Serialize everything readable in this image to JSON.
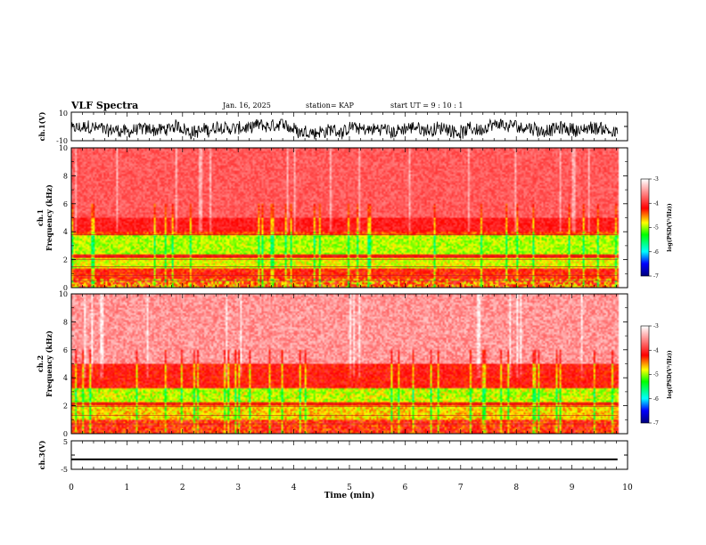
{
  "header": {
    "title": "VLF Spectra",
    "date": "Jan. 16, 2025",
    "station": "station= KAP",
    "start": "start UT =  9 : 10 : 1"
  },
  "colorbar": {
    "ticks": [
      "-3",
      "-4",
      "-5",
      "-6",
      "-7"
    ],
    "label": "log(PSD(V²/Hz))"
  },
  "chart_data": [
    {
      "id": "ch1-waveform",
      "type": "line",
      "ylabel": "ch.1(V)",
      "ylim": [
        -10,
        10
      ],
      "tick_labels": [
        "10",
        "-10"
      ],
      "xlim": [
        0,
        10
      ],
      "x_end_min": 9.82,
      "amplitude_range": [
        -9,
        5
      ]
    },
    {
      "id": "ch1-spectrogram",
      "type": "heatmap",
      "ylabel": "ch.1\nFrequency (kHz)",
      "ylim": [
        0,
        10
      ],
      "yticks": [
        "0",
        "2",
        "4",
        "6",
        "8",
        "10"
      ],
      "xlim": [
        0,
        10
      ],
      "value_range": [
        -7,
        -3
      ],
      "colors": [
        "#000080",
        "#0000ff",
        "#00ffff",
        "#00ff00",
        "#ffff00",
        "#ff0000",
        "#ffffff"
      ]
    },
    {
      "id": "ch2-spectrogram",
      "type": "heatmap",
      "ylabel": "ch.2\nFrequency (kHz)",
      "ylim": [
        0,
        10
      ],
      "yticks": [
        "0",
        "2",
        "4",
        "6",
        "8",
        "10"
      ],
      "xlim": [
        0,
        10
      ],
      "value_range": [
        -7,
        -3
      ],
      "colors": [
        "#000080",
        "#0000ff",
        "#00ffff",
        "#00ff00",
        "#ffff00",
        "#ff0000",
        "#ffffff"
      ]
    },
    {
      "id": "ch3-waveform",
      "type": "line",
      "ylabel": "ch.3(V)",
      "ylim": [
        -5,
        5
      ],
      "tick_labels": [
        "5",
        "-5"
      ],
      "xlim": [
        0,
        10
      ],
      "xticks": [
        "0",
        "1",
        "2",
        "3",
        "4",
        "5",
        "6",
        "7",
        "8",
        "9",
        "10"
      ],
      "xlabel": "Time (min)",
      "level": -1.5,
      "amplitude": 0.3
    }
  ]
}
